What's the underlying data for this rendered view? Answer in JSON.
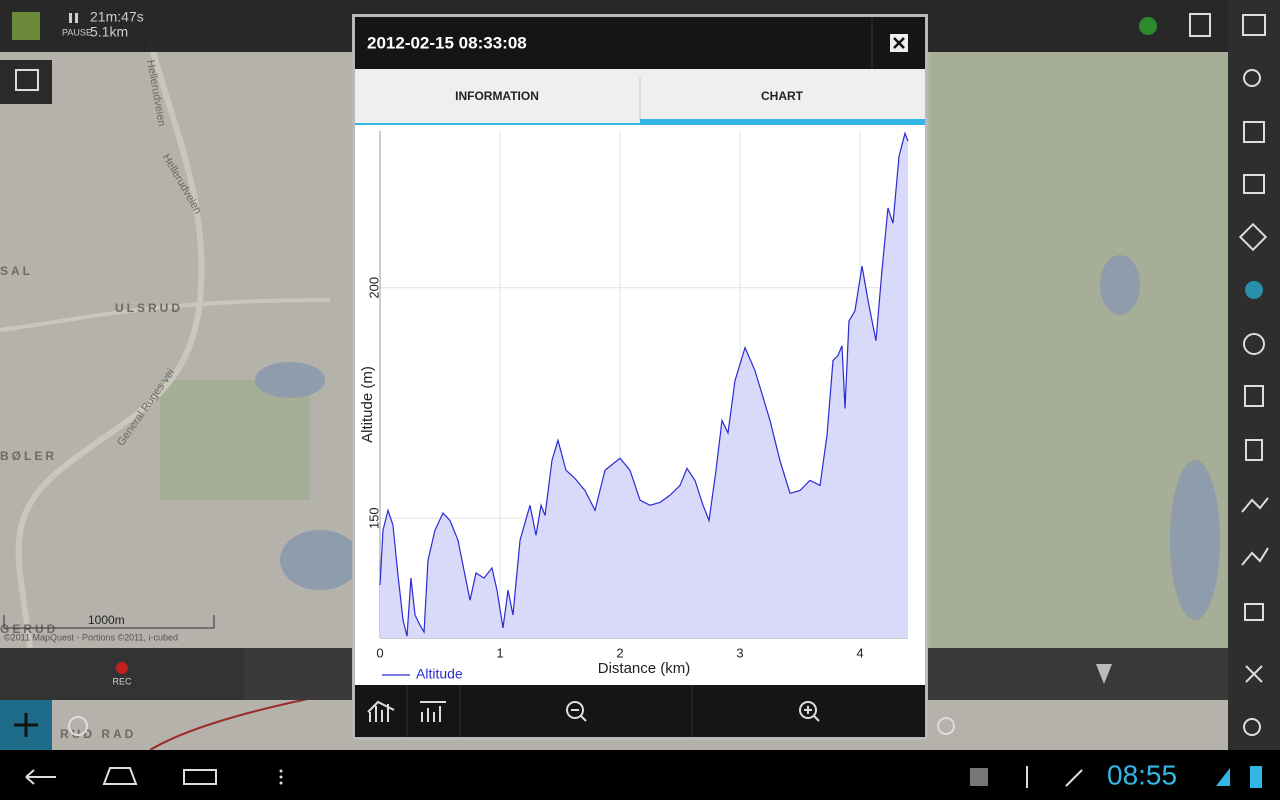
{
  "top_bar": {
    "time": "21m:47s",
    "state": "PAUSE",
    "distance": "5.1km"
  },
  "map": {
    "labels": [
      "Hellerudveien",
      "Hellerudveien",
      "ULSRUD",
      "SAL",
      "BØLER",
      "General Ruges vei",
      "GERUD",
      "RUD RAD"
    ],
    "scale": "1000m",
    "attribution": "©2011 MapQuest - Portions ©2011, i-cubed"
  },
  "rec_button": "REC",
  "dialog": {
    "title": "2012-02-15 08:33:08",
    "tabs": [
      "INFORMATION",
      "CHART"
    ]
  },
  "chart_data": {
    "type": "area",
    "x_label": "Distance (km)",
    "y_label": "Altitude (m)",
    "x": [
      0,
      0.025,
      0.067,
      0.108,
      0.15,
      0.192,
      0.225,
      0.258,
      0.292,
      0.333,
      0.367,
      0.4,
      0.458,
      0.525,
      0.583,
      0.65,
      0.7,
      0.75,
      0.8,
      0.867,
      0.933,
      0.975,
      1.025,
      1.067,
      1.108,
      1.167,
      1.25,
      1.3,
      1.342,
      1.375,
      1.433,
      1.483,
      1.55,
      1.625,
      1.708,
      1.792,
      1.875,
      2,
      2.083,
      2.167,
      2.25,
      2.333,
      2.417,
      2.5,
      2.558,
      2.625,
      2.692,
      2.742,
      2.8,
      2.85,
      2.9,
      2.958,
      3.042,
      3.125,
      3.25,
      3.333,
      3.417,
      3.5,
      3.583,
      3.667,
      3.725,
      3.775,
      3.817,
      3.85,
      3.875,
      3.908,
      3.958,
      4.017,
      4.067,
      4.133,
      4.183,
      4.233,
      4.275,
      4.325,
      4.375,
      4.4
    ],
    "series": [
      {
        "name": "Altitude",
        "color": "#2b2bd6",
        "area_color": "#d9d9fa",
        "values": [
          135.5,
          147.4,
          151.7,
          148.5,
          137.6,
          127.9,
          124.4,
          137,
          129,
          126.8,
          125.3,
          140.9,
          147.4,
          151.1,
          149.5,
          145.2,
          138.7,
          132.2,
          138.1,
          137,
          139.2,
          134.4,
          126.2,
          134.4,
          129,
          145.2,
          152.8,
          146.3,
          152.8,
          150.6,
          162.5,
          166.9,
          160.4,
          158.6,
          156,
          151.7,
          160.4,
          163,
          160.4,
          153.9,
          152.8,
          153.4,
          155,
          157.1,
          160.8,
          158.2,
          152.8,
          149.5,
          160.4,
          171.2,
          168.5,
          179.8,
          187,
          182,
          171.2,
          162.5,
          155.4,
          156,
          158.2,
          157.1,
          168,
          184.2,
          185.3,
          187.4,
          173.8,
          192.8,
          195,
          204.7,
          197.2,
          188.5,
          203.7,
          217.3,
          214,
          228.5,
          233.5,
          231.8
        ]
      }
    ],
    "xlim": [
      0,
      4.4
    ],
    "ylim": [
      124,
      234
    ],
    "xticks": [
      0,
      1,
      2,
      3,
      4
    ],
    "yticks": [
      150,
      200
    ],
    "grid": true,
    "legend": "bottom-left"
  },
  "status_bar": {
    "clock": "08:55"
  }
}
